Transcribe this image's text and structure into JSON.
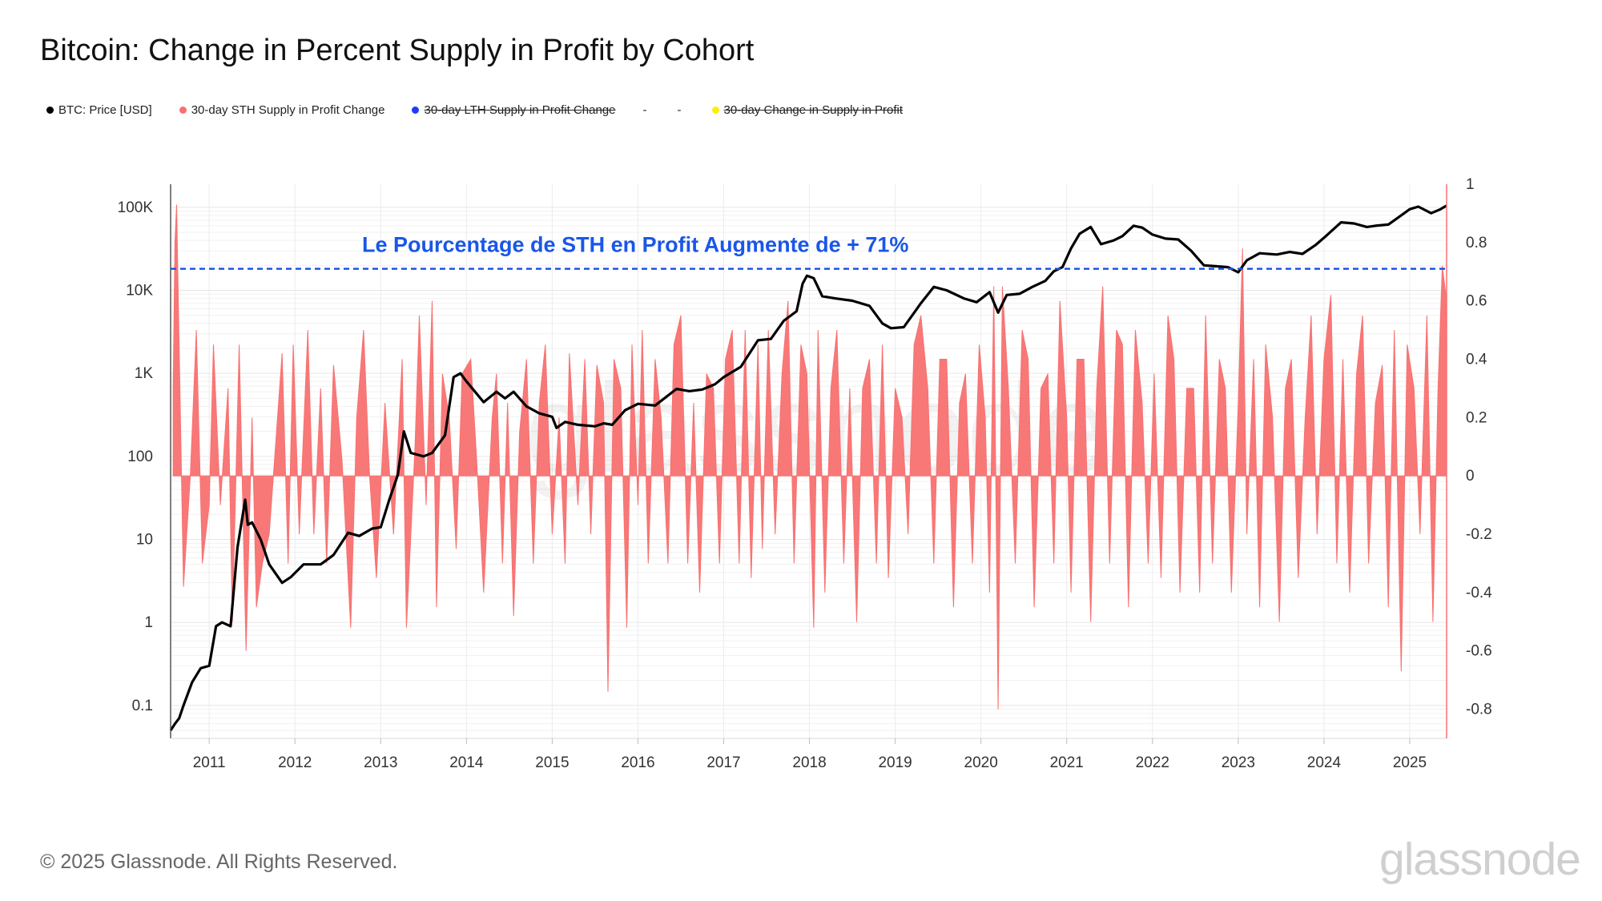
{
  "title": "Bitcoin: Change in Percent Supply in Profit by Cohort",
  "legend": [
    {
      "label": "BTC: Price [USD]",
      "color": "#000000",
      "active": true
    },
    {
      "label": "30-day STH Supply in Profit Change",
      "color": "#f87171",
      "active": true
    },
    {
      "label": "30-day LTH Supply in Profit Change",
      "color": "#1d3bff",
      "active": false
    },
    {
      "label": "-",
      "dash": true
    },
    {
      "label": "-",
      "dash": true
    },
    {
      "label": "30-day Change in Supply in Profit",
      "color": "#ffee00",
      "active": false
    }
  ],
  "annotation": {
    "text": "Le Pourcentage de STH en Profit Augmente de + 71%",
    "value": 0.71,
    "color": "#1a56e8"
  },
  "footer": {
    "copyright": "© 2025 Glassnode. All Rights Reserved.",
    "logo": "glassnode",
    "watermark": "glassnode"
  },
  "chart_data": {
    "type": "line",
    "x_ticks": [
      "2011",
      "2012",
      "2013",
      "2014",
      "2015",
      "2016",
      "2017",
      "2018",
      "2019",
      "2020",
      "2021",
      "2022",
      "2023",
      "2024",
      "2025"
    ],
    "xlim": [
      2010.55,
      2025.43
    ],
    "y_left": {
      "scale": "log",
      "ticks": [
        "0.1",
        "1",
        "10",
        "100",
        "1K",
        "10K",
        "100K"
      ],
      "tick_values": [
        0.1,
        1,
        10,
        100,
        1000,
        10000,
        100000
      ],
      "ylim": [
        0.04,
        190000
      ]
    },
    "y_right": {
      "ticks": [
        "-0.8",
        "-0.6",
        "-0.4",
        "-0.2",
        "0",
        "0.2",
        "0.4",
        "0.6",
        "0.8",
        "1"
      ],
      "ylim": [
        -0.9,
        1.0
      ]
    },
    "grid": true,
    "series": [
      {
        "name": "BTC: Price [USD]",
        "axis": "left",
        "color": "#000000",
        "x": [
          2010.55,
          2010.6,
          2010.65,
          2010.7,
          2010.8,
          2010.9,
          2011.0,
          2011.08,
          2011.15,
          2011.25,
          2011.33,
          2011.42,
          2011.45,
          2011.5,
          2011.6,
          2011.7,
          2011.85,
          2011.95,
          2012.1,
          2012.3,
          2012.45,
          2012.62,
          2012.75,
          2012.9,
          2013.0,
          2013.1,
          2013.2,
          2013.27,
          2013.35,
          2013.5,
          2013.6,
          2013.75,
          2013.85,
          2013.93,
          2014.0,
          2014.1,
          2014.2,
          2014.35,
          2014.45,
          2014.55,
          2014.7,
          2014.85,
          2015.0,
          2015.05,
          2015.15,
          2015.3,
          2015.5,
          2015.6,
          2015.7,
          2015.85,
          2016.0,
          2016.2,
          2016.45,
          2016.6,
          2016.75,
          2016.9,
          2017.0,
          2017.2,
          2017.4,
          2017.55,
          2017.7,
          2017.85,
          2017.92,
          2017.97,
          2018.05,
          2018.15,
          2018.3,
          2018.5,
          2018.7,
          2018.85,
          2018.95,
          2019.1,
          2019.3,
          2019.45,
          2019.6,
          2019.8,
          2019.95,
          2020.1,
          2020.2,
          2020.3,
          2020.45,
          2020.6,
          2020.75,
          2020.85,
          2020.95,
          2021.05,
          2021.15,
          2021.28,
          2021.4,
          2021.55,
          2021.65,
          2021.78,
          2021.88,
          2022.0,
          2022.15,
          2022.3,
          2022.45,
          2022.6,
          2022.75,
          2022.88,
          2023.0,
          2023.1,
          2023.25,
          2023.45,
          2023.6,
          2023.75,
          2023.9,
          2024.0,
          2024.2,
          2024.35,
          2024.5,
          2024.6,
          2024.75,
          2024.9,
          2025.0,
          2025.1,
          2025.25,
          2025.35,
          2025.43
        ],
        "values": [
          0.05,
          0.06,
          0.07,
          0.1,
          0.19,
          0.28,
          0.3,
          0.9,
          1.0,
          0.9,
          8,
          30,
          15,
          16,
          10,
          5,
          3,
          3.5,
          5,
          5,
          6.5,
          12,
          11,
          13.5,
          14,
          30,
          60,
          200,
          110,
          100,
          110,
          180,
          900,
          1000,
          800,
          600,
          450,
          600,
          500,
          600,
          400,
          330,
          300,
          220,
          260,
          240,
          230,
          250,
          240,
          360,
          430,
          410,
          650,
          610,
          640,
          740,
          900,
          1200,
          2500,
          2600,
          4300,
          5600,
          12000,
          15000,
          14000,
          8500,
          8000,
          7500,
          6500,
          4000,
          3500,
          3600,
          7000,
          11000,
          10000,
          8000,
          7200,
          9500,
          5400,
          8800,
          9100,
          11000,
          13000,
          17000,
          19000,
          32000,
          48000,
          58000,
          36000,
          40000,
          45000,
          60000,
          57000,
          47000,
          42000,
          41000,
          30000,
          20000,
          19500,
          19000,
          16500,
          23000,
          28000,
          27000,
          29000,
          27500,
          35000,
          43000,
          66000,
          64000,
          58000,
          60000,
          62000,
          80000,
          95000,
          102000,
          85000,
          94000,
          105000
        ]
      },
      {
        "name": "30-day STH Supply in Profit Change",
        "axis": "right",
        "color": "#f87171",
        "type": "area",
        "x": [
          2010.58,
          2010.6,
          2010.62,
          2010.64,
          2010.7,
          2010.78,
          2010.85,
          2010.92,
          2011.0,
          2011.05,
          2011.13,
          2011.22,
          2011.27,
          2011.35,
          2011.43,
          2011.5,
          2011.55,
          2011.62,
          2011.7,
          2011.85,
          2011.92,
          2011.98,
          2012.05,
          2012.15,
          2012.22,
          2012.3,
          2012.37,
          2012.45,
          2012.55,
          2012.65,
          2012.72,
          2012.8,
          2012.87,
          2012.95,
          2013.05,
          2013.15,
          2013.25,
          2013.3,
          2013.4,
          2013.45,
          2013.53,
          2013.6,
          2013.65,
          2013.72,
          2013.8,
          2013.88,
          2013.95,
          2014.05,
          2014.12,
          2014.2,
          2014.3,
          2014.35,
          2014.42,
          2014.48,
          2014.55,
          2014.62,
          2014.7,
          2014.78,
          2014.85,
          2014.92,
          2015.0,
          2015.08,
          2015.15,
          2015.2,
          2015.3,
          2015.38,
          2015.45,
          2015.52,
          2015.6,
          2015.65,
          2015.72,
          2015.8,
          2015.87,
          2015.93,
          2016.0,
          2016.05,
          2016.12,
          2016.2,
          2016.27,
          2016.35,
          2016.42,
          2016.5,
          2016.58,
          2016.65,
          2016.72,
          2016.8,
          2016.88,
          2016.95,
          2017.02,
          2017.1,
          2017.18,
          2017.25,
          2017.32,
          2017.4,
          2017.45,
          2017.52,
          2017.6,
          2017.68,
          2017.75,
          2017.82,
          2017.9,
          2017.97,
          2018.05,
          2018.1,
          2018.18,
          2018.25,
          2018.32,
          2018.4,
          2018.47,
          2018.55,
          2018.62,
          2018.7,
          2018.78,
          2018.85,
          2018.92,
          2019.0,
          2019.08,
          2019.15,
          2019.22,
          2019.3,
          2019.38,
          2019.45,
          2019.52,
          2019.6,
          2019.68,
          2019.75,
          2019.82,
          2019.9,
          2019.98,
          2020.05,
          2020.1,
          2020.15,
          2020.2,
          2020.25,
          2020.32,
          2020.4,
          2020.48,
          2020.55,
          2020.62,
          2020.7,
          2020.78,
          2020.85,
          2020.92,
          2021.0,
          2021.05,
          2021.12,
          2021.2,
          2021.28,
          2021.35,
          2021.42,
          2021.5,
          2021.58,
          2021.65,
          2021.72,
          2021.8,
          2021.88,
          2021.95,
          2022.02,
          2022.1,
          2022.18,
          2022.25,
          2022.32,
          2022.4,
          2022.48,
          2022.55,
          2022.62,
          2022.7,
          2022.78,
          2022.85,
          2022.92,
          2023.0,
          2023.05,
          2023.1,
          2023.18,
          2023.25,
          2023.32,
          2023.4,
          2023.48,
          2023.55,
          2023.62,
          2023.7,
          2023.78,
          2023.85,
          2023.92,
          2024.0,
          2024.08,
          2024.15,
          2024.22,
          2024.3,
          2024.38,
          2024.45,
          2024.52,
          2024.6,
          2024.68,
          2024.75,
          2024.82,
          2024.9,
          2024.97,
          2025.05,
          2025.12,
          2025.2,
          2025.27,
          2025.33,
          2025.38,
          2025.43
        ],
        "values": [
          0.3,
          0.8,
          0.93,
          0.6,
          -0.38,
          0.0,
          0.5,
          -0.3,
          -0.1,
          0.45,
          -0.1,
          0.3,
          -0.5,
          0.45,
          -0.6,
          0.2,
          -0.45,
          -0.3,
          -0.2,
          0.42,
          -0.3,
          0.45,
          -0.2,
          0.5,
          -0.2,
          0.3,
          -0.3,
          0.38,
          0.05,
          -0.52,
          0.2,
          0.5,
          0.0,
          -0.35,
          0.25,
          -0.2,
          0.4,
          -0.52,
          0.1,
          0.55,
          -0.1,
          0.6,
          -0.45,
          0.35,
          0.2,
          -0.25,
          0.35,
          0.4,
          0.05,
          -0.4,
          0.2,
          0.35,
          -0.3,
          0.25,
          -0.48,
          0.15,
          0.4,
          -0.3,
          0.25,
          0.45,
          -0.2,
          0.2,
          -0.3,
          0.42,
          -0.1,
          0.4,
          -0.2,
          0.38,
          0.25,
          -0.74,
          0.4,
          0.3,
          -0.52,
          0.45,
          -0.1,
          0.5,
          -0.3,
          0.4,
          0.2,
          -0.3,
          0.45,
          0.55,
          -0.3,
          0.25,
          -0.4,
          0.35,
          0.3,
          -0.3,
          0.4,
          0.5,
          -0.3,
          0.5,
          -0.35,
          0.45,
          -0.25,
          0.5,
          -0.2,
          0.35,
          0.6,
          -0.3,
          0.45,
          0.35,
          -0.52,
          0.5,
          -0.4,
          0.3,
          0.5,
          -0.3,
          0.3,
          -0.5,
          0.3,
          0.4,
          -0.3,
          0.45,
          -0.35,
          0.3,
          0.2,
          -0.2,
          0.45,
          0.55,
          0.3,
          -0.3,
          0.4,
          0.4,
          -0.45,
          0.25,
          0.35,
          -0.3,
          0.45,
          0.2,
          -0.4,
          0.65,
          -0.8,
          0.65,
          0.3,
          -0.3,
          0.5,
          0.4,
          -0.45,
          0.3,
          0.35,
          -0.3,
          0.6,
          0.2,
          -0.4,
          0.4,
          0.4,
          -0.5,
          0.3,
          0.65,
          -0.3,
          0.5,
          0.45,
          -0.45,
          0.5,
          0.25,
          -0.3,
          0.35,
          -0.35,
          0.55,
          0.4,
          -0.4,
          0.3,
          0.3,
          -0.4,
          0.55,
          -0.3,
          0.4,
          0.3,
          -0.4,
          0.25,
          0.78,
          -0.2,
          0.4,
          -0.45,
          0.45,
          0.2,
          -0.5,
          0.3,
          0.4,
          -0.35,
          0.2,
          0.55,
          -0.2,
          0.4,
          0.62,
          -0.3,
          0.4,
          -0.4,
          0.35,
          0.55,
          -0.3,
          0.25,
          0.38,
          -0.45,
          0.5,
          -0.67,
          0.45,
          0.3,
          -0.2,
          0.55,
          -0.5,
          0.3,
          0.72,
          0.6
        ]
      }
    ]
  }
}
